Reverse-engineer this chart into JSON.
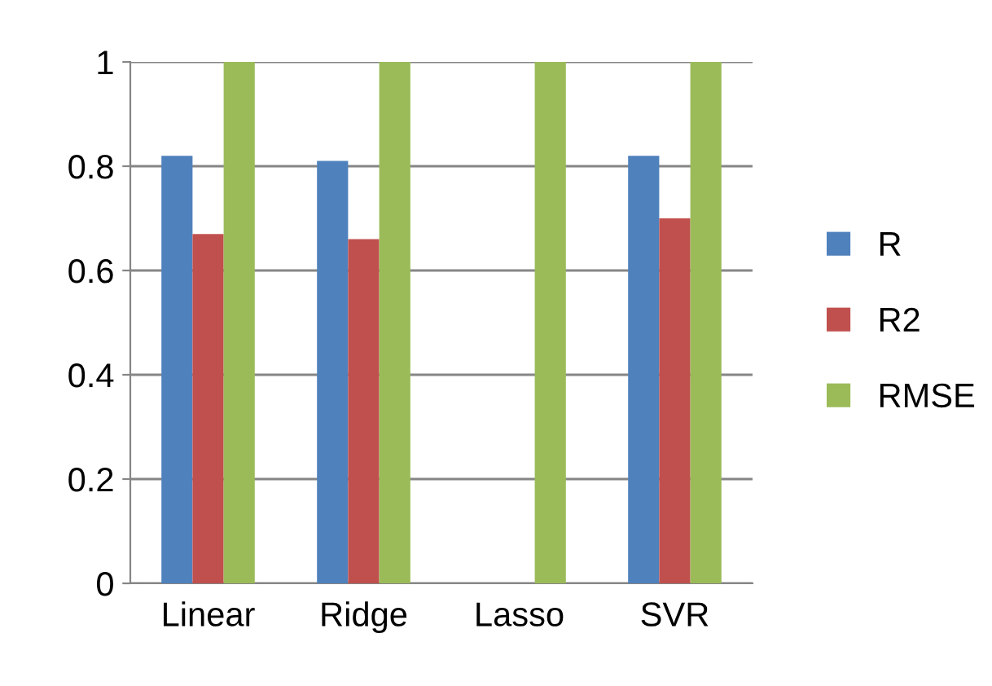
{
  "chart_data": {
    "type": "bar",
    "categories": [
      "Linear",
      "Ridge",
      "Lasso",
      "SVR"
    ],
    "series": [
      {
        "name": "R",
        "color": "#4f81bd",
        "values": [
          0.82,
          0.81,
          0,
          0.82
        ]
      },
      {
        "name": "R2",
        "color": "#c0504d",
        "values": [
          0.67,
          0.66,
          0,
          0.7
        ]
      },
      {
        "name": "RMSE",
        "color": "#9bbb59",
        "values": [
          1,
          1,
          1,
          1
        ]
      }
    ],
    "ylim": [
      0,
      1
    ],
    "yticks": [
      0,
      0.2,
      0.4,
      0.6,
      0.8,
      1
    ],
    "grid": "y",
    "legend": "right"
  }
}
